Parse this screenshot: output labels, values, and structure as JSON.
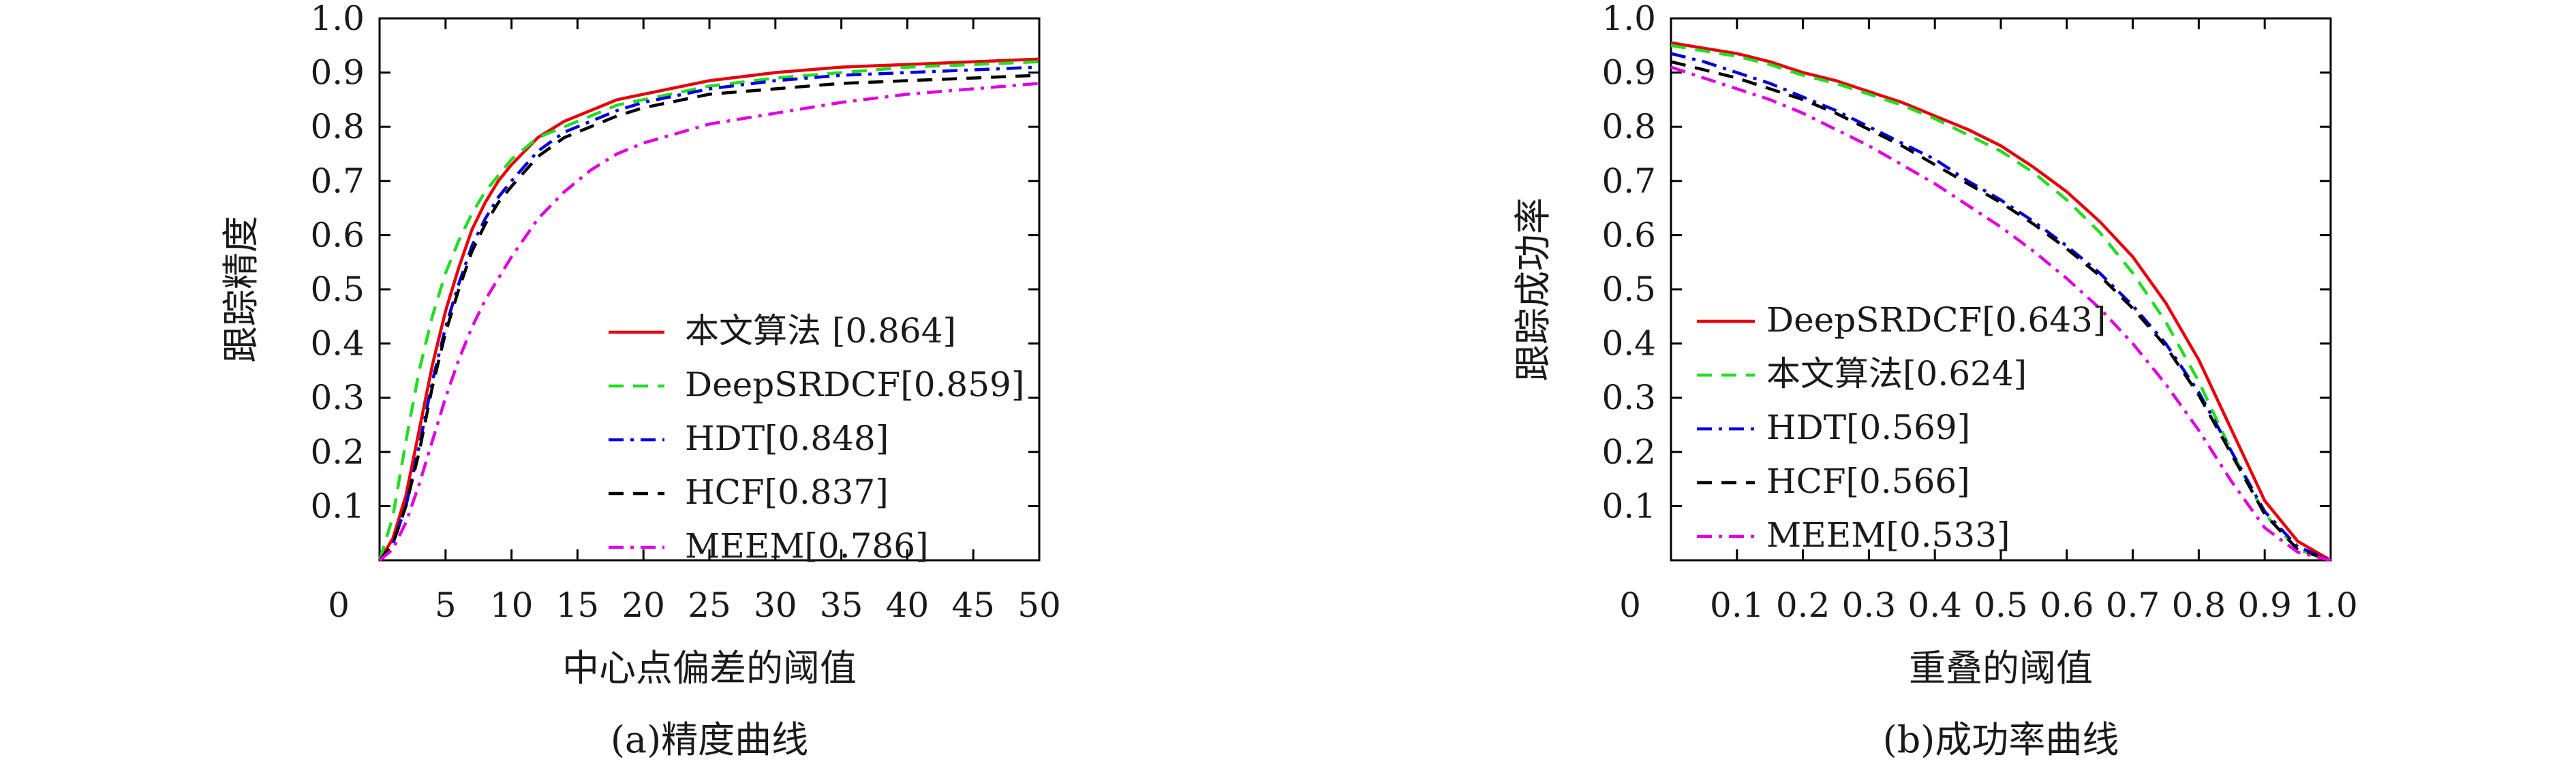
{
  "chart_data": [
    {
      "type": "line",
      "xlabel": "中心点偏差的阈值",
      "ylabel": "跟踪精度",
      "caption": "(a)精度曲线",
      "xlim": [
        0,
        50
      ],
      "ylim": [
        0,
        1
      ],
      "x_ticks": [
        "0",
        "5",
        "10",
        "15",
        "20",
        "25",
        "30",
        "35",
        "40",
        "45",
        "50"
      ],
      "y_ticks": [
        "0.1",
        "0.2",
        "0.3",
        "0.4",
        "0.5",
        "0.6",
        "0.7",
        "0.8",
        "0.9",
        "1.0"
      ],
      "legend_position": "bottom-right",
      "series": [
        {
          "name": "本文算法 [0.864]",
          "color": "#e8000b",
          "dash": "solid",
          "x": [
            0,
            1,
            2,
            3,
            4,
            5,
            6,
            7,
            8,
            9,
            10,
            12,
            14,
            16,
            18,
            20,
            25,
            30,
            35,
            40,
            45,
            50
          ],
          "y": [
            0,
            0.04,
            0.12,
            0.24,
            0.36,
            0.46,
            0.54,
            0.61,
            0.66,
            0.7,
            0.73,
            0.78,
            0.81,
            0.83,
            0.85,
            0.86,
            0.885,
            0.9,
            0.91,
            0.915,
            0.92,
            0.925
          ]
        },
        {
          "name": "DeepSRDCF[0.859]",
          "color": "#22dd22",
          "dash": "dashed",
          "x": [
            0,
            1,
            2,
            3,
            4,
            5,
            6,
            7,
            8,
            9,
            10,
            12,
            14,
            16,
            18,
            20,
            25,
            30,
            35,
            40,
            45,
            50
          ],
          "y": [
            0,
            0.08,
            0.22,
            0.35,
            0.45,
            0.53,
            0.59,
            0.64,
            0.68,
            0.71,
            0.74,
            0.78,
            0.8,
            0.82,
            0.84,
            0.85,
            0.875,
            0.89,
            0.9,
            0.91,
            0.915,
            0.92
          ]
        },
        {
          "name": "HDT[0.848]",
          "color": "#0000dd",
          "dash": "dashdot",
          "x": [
            0,
            1,
            2,
            3,
            4,
            5,
            6,
            7,
            8,
            9,
            10,
            12,
            14,
            16,
            18,
            20,
            25,
            30,
            35,
            40,
            45,
            50
          ],
          "y": [
            0,
            0.03,
            0.1,
            0.21,
            0.33,
            0.43,
            0.51,
            0.58,
            0.63,
            0.67,
            0.7,
            0.755,
            0.79,
            0.81,
            0.83,
            0.845,
            0.87,
            0.885,
            0.895,
            0.9,
            0.905,
            0.91
          ]
        },
        {
          "name": "HCF[0.837]",
          "color": "#000000",
          "dash": "dashed",
          "x": [
            0,
            1,
            2,
            3,
            4,
            5,
            6,
            7,
            8,
            9,
            10,
            12,
            14,
            16,
            18,
            20,
            25,
            30,
            35,
            40,
            45,
            50
          ],
          "y": [
            0,
            0.03,
            0.1,
            0.2,
            0.32,
            0.42,
            0.5,
            0.57,
            0.62,
            0.66,
            0.69,
            0.745,
            0.78,
            0.8,
            0.82,
            0.835,
            0.86,
            0.87,
            0.88,
            0.885,
            0.89,
            0.895
          ]
        },
        {
          "name": "MEEM[0.786]",
          "color": "#e000e0",
          "dash": "dashdot",
          "x": [
            0,
            1,
            2,
            3,
            4,
            5,
            6,
            7,
            8,
            9,
            10,
            12,
            14,
            16,
            18,
            20,
            25,
            30,
            35,
            40,
            45,
            50
          ],
          "y": [
            0,
            0.02,
            0.07,
            0.14,
            0.22,
            0.3,
            0.37,
            0.43,
            0.48,
            0.52,
            0.56,
            0.63,
            0.68,
            0.72,
            0.75,
            0.77,
            0.805,
            0.825,
            0.845,
            0.86,
            0.87,
            0.88
          ]
        }
      ]
    },
    {
      "type": "line",
      "xlabel": "重叠的阈值",
      "ylabel": "跟踪成功率",
      "caption": "(b)成功率曲线",
      "xlim": [
        0,
        1
      ],
      "ylim": [
        0,
        1
      ],
      "x_ticks": [
        "0",
        "0.1",
        "0.2",
        "0.3",
        "0.4",
        "0.5",
        "0.6",
        "0.7",
        "0.8",
        "0.9",
        "1.0"
      ],
      "y_ticks": [
        "0.1",
        "0.2",
        "0.3",
        "0.4",
        "0.5",
        "0.6",
        "0.7",
        "0.8",
        "0.9",
        "1.0"
      ],
      "legend_position": "bottom-left",
      "series": [
        {
          "name": "DeepSRDCF[0.643]",
          "color": "#e8000b",
          "dash": "solid",
          "x": [
            0,
            0.05,
            0.1,
            0.15,
            0.2,
            0.25,
            0.3,
            0.35,
            0.4,
            0.45,
            0.5,
            0.55,
            0.6,
            0.65,
            0.7,
            0.75,
            0.8,
            0.85,
            0.9,
            0.95,
            1.0
          ],
          "y": [
            0.955,
            0.945,
            0.935,
            0.92,
            0.9,
            0.885,
            0.865,
            0.845,
            0.82,
            0.795,
            0.765,
            0.725,
            0.68,
            0.625,
            0.56,
            0.475,
            0.37,
            0.24,
            0.11,
            0.035,
            0
          ]
        },
        {
          "name": "本文算法[0.624]",
          "color": "#22dd22",
          "dash": "dashed",
          "x": [
            0,
            0.05,
            0.1,
            0.15,
            0.2,
            0.25,
            0.3,
            0.35,
            0.4,
            0.45,
            0.5,
            0.55,
            0.6,
            0.65,
            0.7,
            0.75,
            0.8,
            0.85,
            0.9,
            0.95,
            1.0
          ],
          "y": [
            0.95,
            0.94,
            0.93,
            0.915,
            0.895,
            0.88,
            0.86,
            0.84,
            0.815,
            0.785,
            0.755,
            0.715,
            0.665,
            0.605,
            0.53,
            0.44,
            0.33,
            0.2,
            0.085,
            0.02,
            0
          ]
        },
        {
          "name": "HDT[0.569]",
          "color": "#0000dd",
          "dash": "dashdot",
          "x": [
            0,
            0.05,
            0.1,
            0.15,
            0.2,
            0.25,
            0.3,
            0.35,
            0.4,
            0.45,
            0.5,
            0.55,
            0.6,
            0.65,
            0.7,
            0.75,
            0.8,
            0.85,
            0.9,
            0.95,
            1.0
          ],
          "y": [
            0.935,
            0.92,
            0.9,
            0.88,
            0.855,
            0.83,
            0.8,
            0.77,
            0.74,
            0.7,
            0.665,
            0.625,
            0.58,
            0.53,
            0.47,
            0.4,
            0.31,
            0.2,
            0.09,
            0.025,
            0
          ]
        },
        {
          "name": "HCF[0.566]",
          "color": "#000000",
          "dash": "dashed",
          "x": [
            0,
            0.05,
            0.1,
            0.15,
            0.2,
            0.25,
            0.3,
            0.35,
            0.4,
            0.45,
            0.5,
            0.55,
            0.6,
            0.65,
            0.7,
            0.75,
            0.8,
            0.85,
            0.9,
            0.95,
            1.0
          ],
          "y": [
            0.92,
            0.905,
            0.89,
            0.87,
            0.85,
            0.825,
            0.795,
            0.765,
            0.73,
            0.695,
            0.66,
            0.62,
            0.575,
            0.525,
            0.465,
            0.395,
            0.305,
            0.195,
            0.085,
            0.02,
            0
          ]
        },
        {
          "name": "MEEM[0.533]",
          "color": "#e000e0",
          "dash": "dashdot",
          "x": [
            0,
            0.05,
            0.1,
            0.15,
            0.2,
            0.25,
            0.3,
            0.35,
            0.4,
            0.45,
            0.5,
            0.55,
            0.6,
            0.65,
            0.7,
            0.75,
            0.8,
            0.85,
            0.9,
            0.95,
            1.0
          ],
          "y": [
            0.91,
            0.89,
            0.87,
            0.85,
            0.825,
            0.795,
            0.765,
            0.73,
            0.695,
            0.655,
            0.615,
            0.57,
            0.52,
            0.465,
            0.4,
            0.325,
            0.24,
            0.145,
            0.06,
            0.015,
            0
          ]
        }
      ]
    }
  ]
}
